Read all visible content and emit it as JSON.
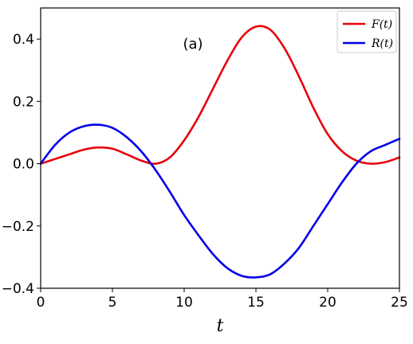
{
  "chart_data": {
    "type": "line",
    "title": "",
    "xlabel": "t",
    "ylabel": "",
    "annotation": "(a)",
    "xlim": [
      0,
      25
    ],
    "ylim": [
      -0.4,
      0.5
    ],
    "xticks": [
      0,
      5,
      10,
      15,
      20,
      25
    ],
    "xtick_labels": [
      "0",
      "5",
      "10",
      "15",
      "20",
      "25"
    ],
    "yticks": [
      -0.4,
      -0.2,
      0.0,
      0.2,
      0.4
    ],
    "ytick_labels": [
      "−0.4",
      "−0.2",
      "0.0",
      "0.2",
      "0.4"
    ],
    "grid": false,
    "legend_position": "top-right",
    "x": [
      0,
      1,
      2,
      3,
      4,
      5,
      6,
      7,
      8,
      9,
      10,
      11,
      12,
      13,
      14,
      15,
      16,
      17,
      18,
      19,
      20,
      21,
      22,
      23,
      24,
      25
    ],
    "series": [
      {
        "name": "F(t)",
        "color": "#e8000b",
        "values": [
          0.0,
          0.015,
          0.03,
          0.045,
          0.052,
          0.048,
          0.03,
          0.01,
          0.0,
          0.02,
          0.075,
          0.15,
          0.24,
          0.33,
          0.405,
          0.44,
          0.43,
          0.37,
          0.28,
          0.18,
          0.095,
          0.04,
          0.01,
          0.0,
          0.005,
          0.02
        ]
      },
      {
        "name": "R(t)",
        "color": "#0000e6",
        "values": [
          0.0,
          0.06,
          0.1,
          0.12,
          0.125,
          0.115,
          0.085,
          0.04,
          -0.02,
          -0.09,
          -0.165,
          -0.23,
          -0.29,
          -0.335,
          -0.36,
          -0.365,
          -0.355,
          -0.32,
          -0.27,
          -0.2,
          -0.13,
          -0.06,
          0.0,
          0.04,
          0.06,
          0.08
        ]
      }
    ]
  }
}
